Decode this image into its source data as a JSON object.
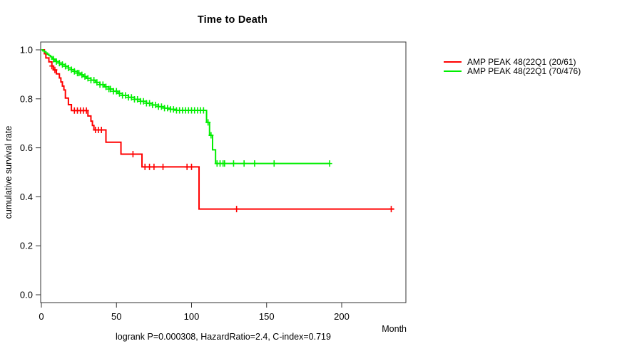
{
  "chart_data": {
    "type": "line",
    "subtype": "kaplan-meier-step",
    "title": "Time to Death",
    "xlabel": "Month",
    "ylabel": "cumulative survival rate",
    "footnote": "logrank P=0.000308, HazardRatio=2.4, C-index=0.719",
    "xlim": [
      0,
      243
    ],
    "ylim": [
      0.0,
      1.0
    ],
    "x_tick_labels": [
      "0",
      "50",
      "100",
      "150",
      "200"
    ],
    "y_tick_labels": [
      "0.0",
      "0.2",
      "0.4",
      "0.6",
      "0.8",
      "1.0"
    ],
    "grid": false,
    "legend_position": "right-outside",
    "series": [
      {
        "name": "AMP PEAK 48(22Q1 (20/61)",
        "color": "#ff0000",
        "end_month": 235,
        "points": [
          [
            0,
            1.0
          ],
          [
            2,
            0.984
          ],
          [
            3,
            0.967
          ],
          [
            5,
            0.951
          ],
          [
            7,
            0.934
          ],
          [
            8,
            0.918
          ],
          [
            10,
            0.902
          ],
          [
            12,
            0.885
          ],
          [
            13,
            0.869
          ],
          [
            14,
            0.852
          ],
          [
            15,
            0.836
          ],
          [
            16,
            0.803
          ],
          [
            18,
            0.776
          ],
          [
            20,
            0.752
          ],
          [
            31,
            0.73
          ],
          [
            33,
            0.709
          ],
          [
            34,
            0.691
          ],
          [
            35,
            0.673
          ],
          [
            43,
            0.623
          ],
          [
            53,
            0.574
          ],
          [
            67,
            0.522
          ],
          [
            105,
            0.35
          ]
        ],
        "censor_months": [
          7,
          9,
          22,
          24,
          26,
          28,
          30,
          36,
          38,
          40,
          61,
          69,
          72,
          75,
          81,
          97,
          100,
          130,
          233
        ]
      },
      {
        "name": "AMP PEAK 48(22Q1 (70/476)",
        "color": "#00ee00",
        "end_month": 192,
        "points": [
          [
            0,
            1.0
          ],
          [
            1,
            0.996
          ],
          [
            2,
            0.992
          ],
          [
            3,
            0.987
          ],
          [
            4,
            0.982
          ],
          [
            5,
            0.977
          ],
          [
            6,
            0.972
          ],
          [
            7,
            0.967
          ],
          [
            8,
            0.962
          ],
          [
            9,
            0.957
          ],
          [
            10,
            0.952
          ],
          [
            12,
            0.946
          ],
          [
            14,
            0.94
          ],
          [
            16,
            0.933
          ],
          [
            18,
            0.926
          ],
          [
            20,
            0.919
          ],
          [
            22,
            0.912
          ],
          [
            24,
            0.905
          ],
          [
            26,
            0.898
          ],
          [
            28,
            0.891
          ],
          [
            30,
            0.884
          ],
          [
            33,
            0.876
          ],
          [
            36,
            0.867
          ],
          [
            39,
            0.858
          ],
          [
            42,
            0.849
          ],
          [
            45,
            0.84
          ],
          [
            48,
            0.831
          ],
          [
            51,
            0.822
          ],
          [
            54,
            0.814
          ],
          [
            58,
            0.806
          ],
          [
            62,
            0.798
          ],
          [
            66,
            0.79
          ],
          [
            70,
            0.782
          ],
          [
            74,
            0.775
          ],
          [
            78,
            0.768
          ],
          [
            82,
            0.762
          ],
          [
            86,
            0.757
          ],
          [
            90,
            0.753
          ],
          [
            110,
            0.704
          ],
          [
            112,
            0.651
          ],
          [
            114,
            0.592
          ],
          [
            116,
            0.536
          ]
        ],
        "censor_months": [
          8,
          10,
          12,
          14,
          16,
          18,
          20,
          22,
          24,
          25,
          27,
          29,
          31,
          33,
          35,
          37,
          39,
          41,
          43,
          45,
          46,
          48,
          50,
          52,
          54,
          56,
          58,
          60,
          62,
          64,
          66,
          68,
          70,
          72,
          74,
          76,
          78,
          80,
          82,
          84,
          86,
          88,
          90,
          92,
          94,
          96,
          98,
          100,
          102,
          104,
          106,
          108,
          111,
          113,
          117,
          119,
          121,
          122,
          128,
          135,
          142,
          155,
          192
        ]
      }
    ]
  }
}
